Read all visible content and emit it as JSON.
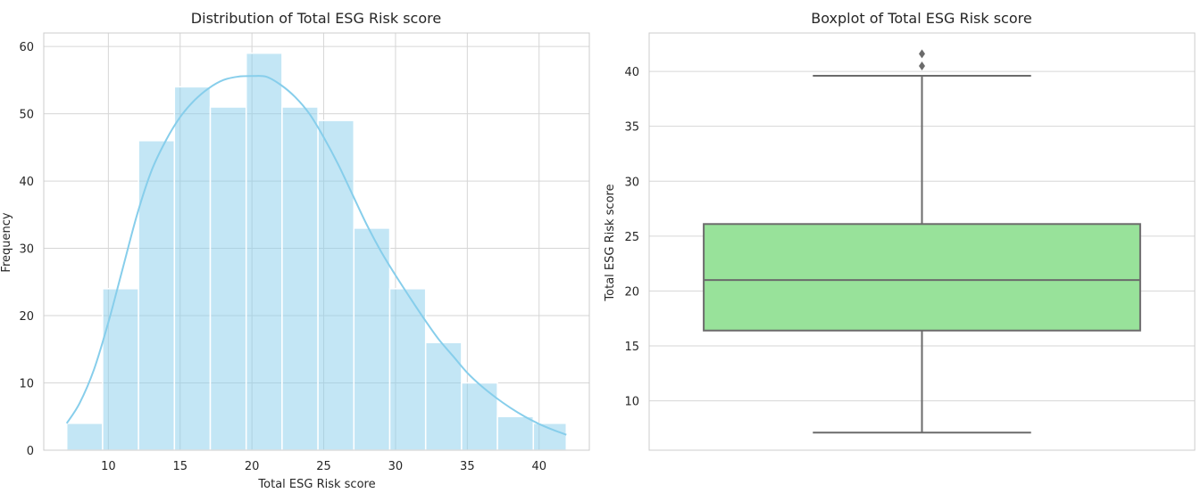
{
  "chart_data": [
    {
      "type": "histogram",
      "title": "Distribution of Total ESG Risk score",
      "xlabel": "Total ESG Risk score",
      "ylabel": "Frequency",
      "xlim": [
        5.5,
        43.5
      ],
      "ylim": [
        0,
        62
      ],
      "xticks": [
        10,
        15,
        20,
        25,
        30,
        35,
        40
      ],
      "yticks": [
        0,
        10,
        20,
        30,
        40,
        50,
        60
      ],
      "bin_edges": [
        7.1,
        9.6,
        12.1,
        14.6,
        17.1,
        19.6,
        22.1,
        24.6,
        27.1,
        29.6,
        32.1,
        34.6,
        37.1,
        39.6,
        41.9
      ],
      "values": [
        4,
        24,
        46,
        54,
        51,
        59,
        51,
        49,
        33,
        24,
        16,
        10,
        5,
        4
      ],
      "kde": {
        "x": [
          7.1,
          8,
          9,
          10,
          11,
          12,
          13,
          14,
          15,
          16,
          17,
          18,
          19,
          20,
          21,
          22,
          23,
          24,
          25,
          26,
          27,
          28,
          29,
          30,
          31,
          32,
          33,
          34,
          35,
          36,
          37,
          38,
          39,
          40,
          41,
          41.9
        ],
        "y": [
          4,
          7,
          12,
          19,
          27,
          35,
          41.5,
          46,
          49.5,
          52,
          53.8,
          55,
          55.5,
          55.6,
          55.5,
          54.3,
          52.5,
          50,
          46.5,
          42.5,
          38,
          33.5,
          29.5,
          26,
          22.7,
          19.5,
          16.5,
          14,
          11.5,
          9.5,
          7.8,
          6.3,
          5,
          3.9,
          3,
          2.3
        ]
      },
      "colors": {
        "bar": "#87ceeb",
        "kde": "#87ceeb"
      },
      "grid": true
    },
    {
      "type": "boxplot",
      "title": "Boxplot of Total ESG Risk score",
      "ylabel": "Total ESG Risk score",
      "ylim": [
        5.5,
        43.5
      ],
      "yticks": [
        10,
        15,
        20,
        25,
        30,
        35,
        40
      ],
      "whisker_low": 7.1,
      "q1": 16.4,
      "median": 21.0,
      "q3": 26.1,
      "whisker_high": 39.6,
      "outliers": [
        40.5,
        41.6
      ],
      "colors": {
        "box": "#98e29a",
        "line": "#6b6b6b"
      },
      "grid": true
    }
  ]
}
